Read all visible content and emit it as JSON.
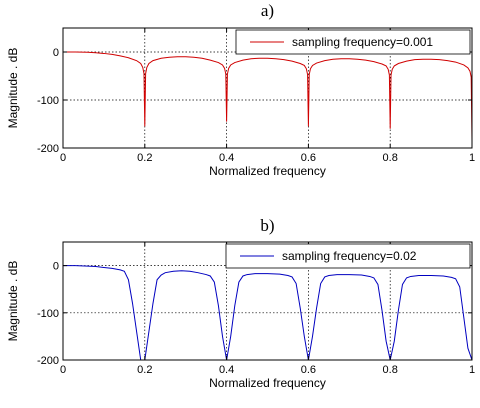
{
  "chart_data": [
    {
      "type": "line",
      "panel_label": "a)",
      "xlabel": "Normalized frequency",
      "ylabel": "Magnitude . dB",
      "xlim": [
        0,
        1
      ],
      "ylim": [
        -200,
        50
      ],
      "xticks": [
        "0",
        "0.2",
        "0.4",
        "0.6",
        "0.8",
        "1"
      ],
      "yticks": [
        "0",
        "-100",
        "-200"
      ],
      "grid": true,
      "legend_position": "top-right",
      "color": "#d00000",
      "series": [
        {
          "name": "sampling frequency=0.001",
          "x": [
            0,
            0.03,
            0.06,
            0.08,
            0.1,
            0.12,
            0.14,
            0.16,
            0.18,
            0.19,
            0.195,
            0.198,
            0.2,
            0.202,
            0.205,
            0.21,
            0.22,
            0.24,
            0.26,
            0.28,
            0.3,
            0.32,
            0.34,
            0.36,
            0.38,
            0.39,
            0.395,
            0.398,
            0.4,
            0.402,
            0.405,
            0.41,
            0.42,
            0.44,
            0.46,
            0.48,
            0.5,
            0.52,
            0.54,
            0.56,
            0.58,
            0.59,
            0.595,
            0.598,
            0.6,
            0.602,
            0.605,
            0.61,
            0.62,
            0.64,
            0.66,
            0.68,
            0.7,
            0.72,
            0.74,
            0.76,
            0.78,
            0.79,
            0.795,
            0.798,
            0.8,
            0.802,
            0.805,
            0.81,
            0.82,
            0.84,
            0.86,
            0.88,
            0.9,
            0.92,
            0.94,
            0.96,
            0.98,
            0.99,
            0.995,
            0.998,
            1.0
          ],
          "y": [
            0,
            0,
            -0.5,
            -1.5,
            -3,
            -5,
            -8,
            -12,
            -18,
            -24,
            -32,
            -45,
            -155,
            -45,
            -32,
            -24,
            -18,
            -13,
            -11,
            -10,
            -10,
            -11,
            -13,
            -17,
            -22,
            -27,
            -34,
            -46,
            -145,
            -46,
            -34,
            -27,
            -22,
            -17,
            -14,
            -13,
            -13,
            -14,
            -16,
            -19,
            -24,
            -28,
            -35,
            -47,
            -155,
            -47,
            -35,
            -28,
            -23,
            -18,
            -15,
            -14,
            -14,
            -15,
            -17,
            -20,
            -25,
            -29,
            -36,
            -48,
            -160,
            -48,
            -36,
            -29,
            -24,
            -19,
            -16,
            -15,
            -15,
            -16,
            -18,
            -21,
            -27,
            -33,
            -40,
            -52,
            -185
          ]
        }
      ]
    },
    {
      "type": "line",
      "panel_label": "b)",
      "xlabel": "Normalized frequency",
      "ylabel": "Magnitude . dB",
      "xlim": [
        0,
        1
      ],
      "ylim": [
        -200,
        50
      ],
      "xticks": [
        "0",
        "0.2",
        "0.4",
        "0.6",
        "0.8",
        "1"
      ],
      "yticks": [
        "0",
        "-100",
        "-200"
      ],
      "grid": true,
      "legend_position": "top-right",
      "color": "#0000c0",
      "series": [
        {
          "name": "sampling frequency=0.02",
          "x": [
            0,
            0.03,
            0.06,
            0.08,
            0.1,
            0.12,
            0.14,
            0.15,
            0.16,
            0.17,
            0.18,
            0.19,
            0.2,
            0.21,
            0.22,
            0.23,
            0.24,
            0.25,
            0.27,
            0.29,
            0.31,
            0.33,
            0.35,
            0.36,
            0.37,
            0.38,
            0.39,
            0.4,
            0.41,
            0.42,
            0.43,
            0.44,
            0.45,
            0.47,
            0.5,
            0.53,
            0.55,
            0.56,
            0.57,
            0.58,
            0.59,
            0.6,
            0.61,
            0.62,
            0.63,
            0.64,
            0.65,
            0.67,
            0.7,
            0.73,
            0.75,
            0.76,
            0.77,
            0.78,
            0.79,
            0.8,
            0.81,
            0.82,
            0.83,
            0.84,
            0.85,
            0.87,
            0.9,
            0.93,
            0.95,
            0.96,
            0.97,
            0.98,
            0.99,
            1.0
          ],
          "y": [
            0,
            0,
            -1,
            -2,
            -4,
            -6,
            -9,
            -12,
            -30,
            -80,
            -140,
            -200,
            -200,
            -140,
            -80,
            -30,
            -20,
            -15,
            -12,
            -11,
            -12,
            -15,
            -19,
            -22,
            -35,
            -85,
            -150,
            -200,
            -150,
            -85,
            -35,
            -22,
            -19,
            -17,
            -17,
            -18,
            -21,
            -24,
            -38,
            -90,
            -150,
            -200,
            -150,
            -90,
            -38,
            -24,
            -21,
            -19,
            -19,
            -20,
            -23,
            -26,
            -40,
            -95,
            -160,
            -200,
            -160,
            -95,
            -40,
            -26,
            -23,
            -21,
            -21,
            -22,
            -25,
            -28,
            -45,
            -110,
            -175,
            -200
          ]
        }
      ]
    }
  ]
}
